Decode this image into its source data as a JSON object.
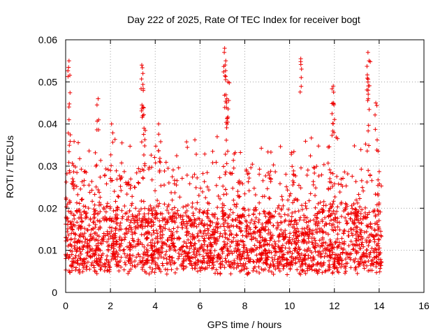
{
  "chart_data": {
    "type": "scatter",
    "title": "Day 222 of 2025, Rate Of TEC Index for receiver bogt",
    "xlabel": "GPS time / hours",
    "ylabel": "ROTI / TECUs",
    "xlim": [
      0,
      16
    ],
    "ylim": [
      0,
      0.06
    ],
    "x_ticks": [
      "0",
      "2",
      "4",
      "6",
      "8",
      "10",
      "12",
      "14",
      "16"
    ],
    "y_ticks": [
      "0",
      "0.01",
      "0.02",
      "0.03",
      "0.04",
      "0.05",
      "0.06"
    ],
    "grid": true,
    "marker": "+",
    "marker_color": "#ee0000",
    "series": [
      {
        "name": "ROTI",
        "x_range": [
          0,
          14.1
        ],
        "typical_band": [
          0.005,
          0.03
        ],
        "peaks": [
          {
            "x": 0.15,
            "y": 0.055
          },
          {
            "x": 0.15,
            "y": 0.041
          },
          {
            "x": 1.45,
            "y": 0.046
          },
          {
            "x": 2.05,
            "y": 0.04
          },
          {
            "x": 3.4,
            "y": 0.054
          },
          {
            "x": 3.45,
            "y": 0.052
          },
          {
            "x": 3.45,
            "y": 0.044
          },
          {
            "x": 3.5,
            "y": 0.039
          },
          {
            "x": 4.15,
            "y": 0.04
          },
          {
            "x": 7.1,
            "y": 0.058
          },
          {
            "x": 7.15,
            "y": 0.055
          },
          {
            "x": 7.25,
            "y": 0.05
          },
          {
            "x": 7.2,
            "y": 0.046
          },
          {
            "x": 10.5,
            "y": 0.0555
          },
          {
            "x": 11.95,
            "y": 0.049
          },
          {
            "x": 11.95,
            "y": 0.045
          },
          {
            "x": 13.5,
            "y": 0.057
          },
          {
            "x": 13.55,
            "y": 0.055
          },
          {
            "x": 13.5,
            "y": 0.05
          },
          {
            "x": 13.85,
            "y": 0.045
          }
        ]
      }
    ]
  }
}
